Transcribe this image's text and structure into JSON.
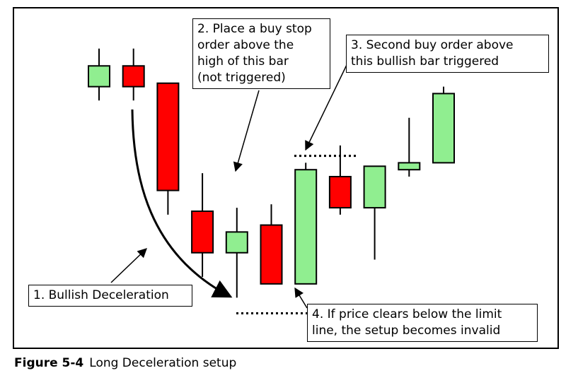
{
  "chart_data": {
    "type": "candlestick",
    "candles": [
      {
        "open": 80,
        "close": 86,
        "high": 91,
        "low": 76,
        "direction": "bullish"
      },
      {
        "open": 86,
        "close": 80,
        "high": 91,
        "low": 76,
        "direction": "bearish"
      },
      {
        "open": 81,
        "close": 50,
        "high": 81,
        "low": 43,
        "direction": "bearish"
      },
      {
        "open": 44,
        "close": 32,
        "high": 55,
        "low": 25,
        "direction": "bearish"
      },
      {
        "open": 32,
        "close": 38,
        "high": 45,
        "low": 19,
        "direction": "bullish"
      },
      {
        "open": 40,
        "close": 23,
        "high": 46,
        "low": 23,
        "direction": "bearish"
      },
      {
        "open": 23,
        "close": 56,
        "high": 58,
        "low": 23,
        "direction": "bullish"
      },
      {
        "open": 54,
        "close": 45,
        "high": 63,
        "low": 43,
        "direction": "bearish"
      },
      {
        "open": 45,
        "close": 57,
        "high": 57,
        "low": 30,
        "direction": "bullish"
      },
      {
        "open": 56,
        "close": 58,
        "high": 71,
        "low": 54,
        "direction": "bullish"
      },
      {
        "open": 58,
        "close": 78,
        "high": 80,
        "low": 58,
        "direction": "bullish"
      }
    ],
    "ylim": [
      5,
      103
    ],
    "buy_order_level": 60,
    "limit_line_level": 14.5,
    "annotations": [
      "1. Bullish Deceleration",
      "2. Place a buy stop\norder above the\nhigh of this bar\n(not triggered)",
      "3. Second buy order above\nthis bullish bar triggered",
      "4. If price clears below the limit\nline, the setup becomes invalid"
    ],
    "colors": {
      "bullish": "#90ee90",
      "bearish": "#ff0000",
      "outline": "#000000"
    }
  },
  "caption": {
    "label": "Figure 5-4",
    "text": "Long Deceleration setup"
  }
}
